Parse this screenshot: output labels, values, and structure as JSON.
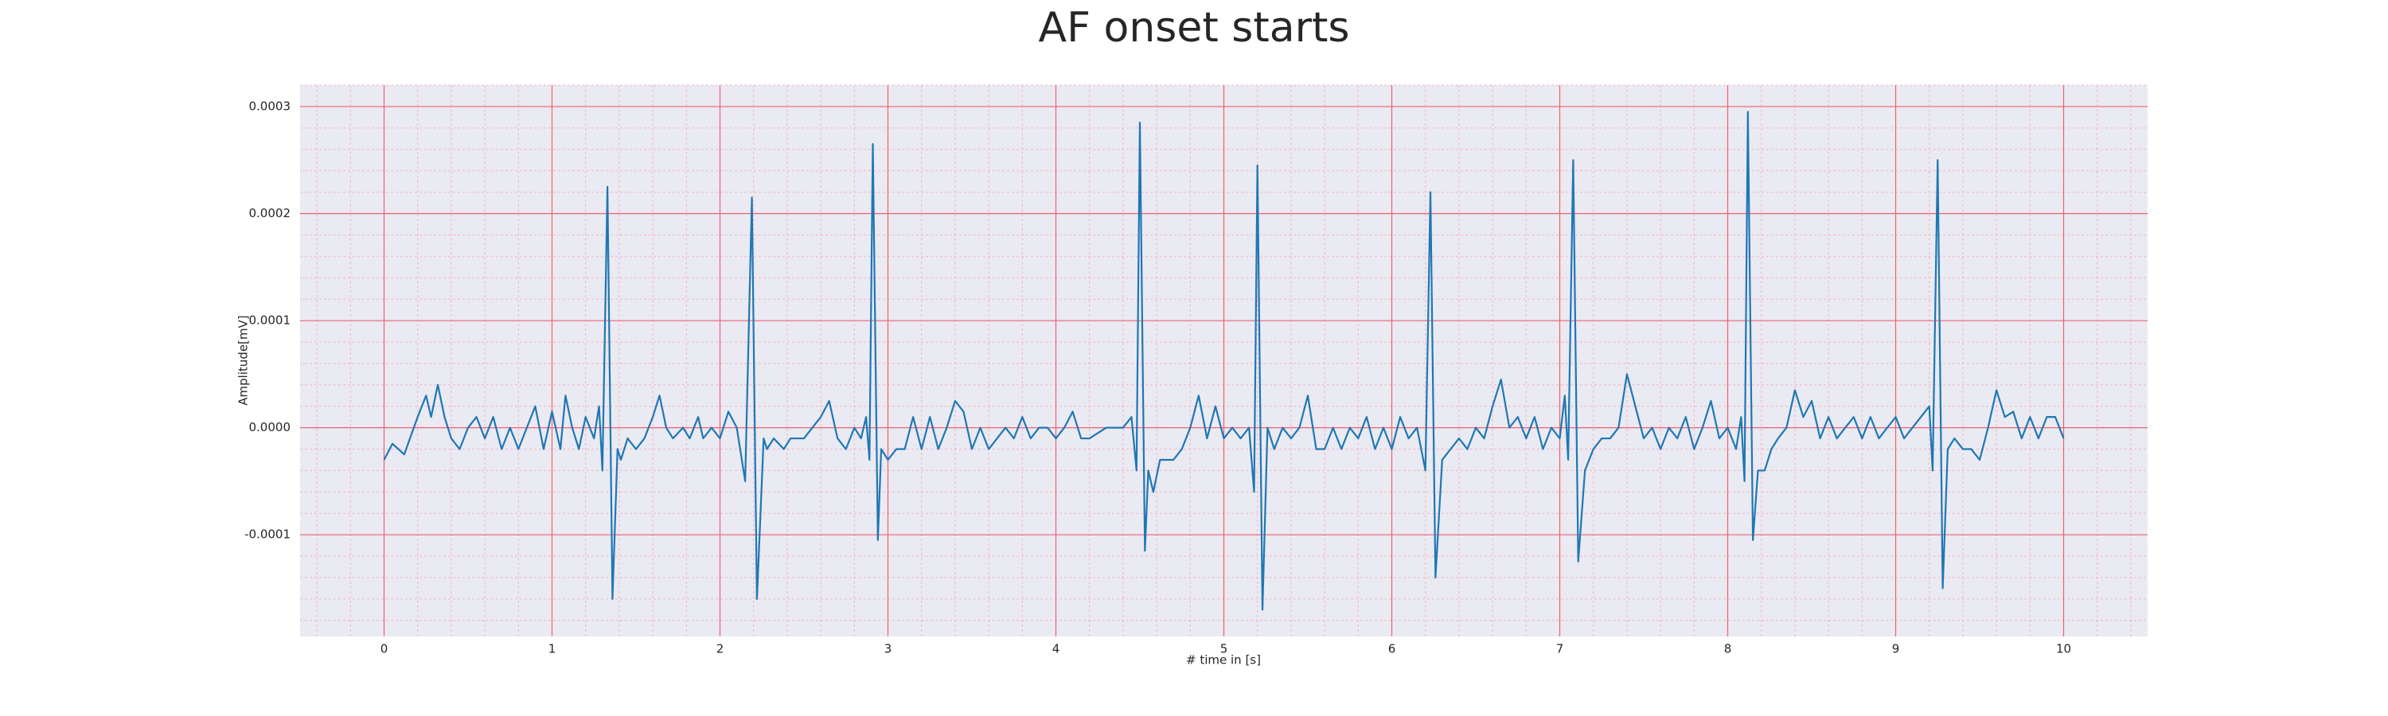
{
  "chart_data": {
    "type": "line",
    "title": "AF onset starts",
    "x_label": "# time in [s]",
    "y_label": "Amplitude[mV]",
    "color": "#1f77b4",
    "grid": true,
    "minor_grid": true,
    "x": [
      0,
      0.05,
      0.12,
      0.2,
      0.25,
      0.28,
      0.32,
      0.36,
      0.4,
      0.45,
      0.5,
      0.55,
      0.6,
      0.65,
      0.7,
      0.75,
      0.8,
      0.85,
      0.9,
      0.95,
      1.0,
      1.05,
      1.08,
      1.12,
      1.16,
      1.2,
      1.25,
      1.28,
      1.3,
      1.33,
      1.36,
      1.39,
      1.41,
      1.45,
      1.5,
      1.55,
      1.6,
      1.64,
      1.68,
      1.72,
      1.78,
      1.82,
      1.87,
      1.9,
      1.95,
      2.0,
      2.05,
      2.1,
      2.15,
      2.19,
      2.22,
      2.26,
      2.28,
      2.32,
      2.38,
      2.42,
      2.5,
      2.55,
      2.6,
      2.65,
      2.7,
      2.75,
      2.8,
      2.84,
      2.87,
      2.89,
      2.91,
      2.94,
      2.96,
      3.0,
      3.05,
      3.1,
      3.15,
      3.2,
      3.25,
      3.3,
      3.35,
      3.4,
      3.45,
      3.5,
      3.55,
      3.6,
      3.65,
      3.7,
      3.75,
      3.8,
      3.85,
      3.9,
      3.95,
      4.0,
      4.05,
      4.1,
      4.15,
      4.2,
      4.3,
      4.4,
      4.45,
      4.48,
      4.5,
      4.53,
      4.55,
      4.58,
      4.62,
      4.7,
      4.75,
      4.8,
      4.85,
      4.9,
      4.95,
      5.0,
      5.05,
      5.1,
      5.15,
      5.18,
      5.2,
      5.23,
      5.26,
      5.3,
      5.35,
      5.4,
      5.45,
      5.5,
      5.55,
      5.6,
      5.65,
      5.7,
      5.75,
      5.8,
      5.85,
      5.9,
      5.95,
      6.0,
      6.05,
      6.1,
      6.15,
      6.2,
      6.23,
      6.26,
      6.3,
      6.35,
      6.4,
      6.45,
      6.5,
      6.55,
      6.6,
      6.65,
      6.7,
      6.75,
      6.8,
      6.85,
      6.9,
      6.95,
      7.0,
      7.03,
      7.05,
      7.08,
      7.11,
      7.15,
      7.2,
      7.25,
      7.3,
      7.35,
      7.4,
      7.45,
      7.5,
      7.55,
      7.6,
      7.65,
      7.7,
      7.75,
      7.8,
      7.85,
      7.9,
      7.95,
      8.0,
      8.05,
      8.08,
      8.1,
      8.12,
      8.15,
      8.18,
      8.22,
      8.26,
      8.3,
      8.35,
      8.4,
      8.45,
      8.5,
      8.55,
      8.6,
      8.65,
      8.7,
      8.75,
      8.8,
      8.85,
      8.9,
      8.95,
      9.0,
      9.05,
      9.1,
      9.15,
      9.2,
      9.22,
      9.25,
      9.28,
      9.31,
      9.35,
      9.4,
      9.45,
      9.5,
      9.55,
      9.6,
      9.65,
      9.7,
      9.75,
      9.8,
      9.85,
      9.9,
      9.95,
      10.0
    ],
    "values": [
      -3e-05,
      -1.5e-05,
      -2.5e-05,
      1e-05,
      3e-05,
      1e-05,
      4e-05,
      1e-05,
      -1e-05,
      -2e-05,
      0,
      1e-05,
      -1e-05,
      1e-05,
      -2e-05,
      0,
      -2e-05,
      0,
      2e-05,
      -2e-05,
      1.5e-05,
      -2e-05,
      3e-05,
      0,
      -2e-05,
      1e-05,
      -1e-05,
      2e-05,
      -4e-05,
      0.000225,
      -0.00016,
      -2e-05,
      -3e-05,
      -1e-05,
      -2e-05,
      -1e-05,
      1e-05,
      3e-05,
      0,
      -1e-05,
      0,
      -1e-05,
      1e-05,
      -1e-05,
      0,
      -1e-05,
      1.5e-05,
      0,
      -5e-05,
      0.000215,
      -0.00016,
      -1e-05,
      -2e-05,
      -1e-05,
      -2e-05,
      -1e-05,
      -1e-05,
      0,
      1e-05,
      2.5e-05,
      -1e-05,
      -2e-05,
      0,
      -1e-05,
      1e-05,
      -3e-05,
      0.000265,
      -0.000105,
      -2e-05,
      -3e-05,
      -2e-05,
      -2e-05,
      1e-05,
      -2e-05,
      1e-05,
      -2e-05,
      0,
      2.5e-05,
      1.5e-05,
      -2e-05,
      0,
      -2e-05,
      -1e-05,
      0,
      -1e-05,
      1e-05,
      -1e-05,
      0,
      0,
      -1e-05,
      0,
      1.5e-05,
      -1e-05,
      -1e-05,
      0,
      0,
      1e-05,
      -4e-05,
      0.000285,
      -0.000115,
      -4e-05,
      -6e-05,
      -3e-05,
      -3e-05,
      -2e-05,
      0,
      3e-05,
      -1e-05,
      2e-05,
      -1e-05,
      0,
      -1e-05,
      0,
      -6e-05,
      0.000245,
      -0.00017,
      0,
      -2e-05,
      0,
      -1e-05,
      0,
      3e-05,
      -2e-05,
      -2e-05,
      0,
      -2e-05,
      0,
      -1e-05,
      1e-05,
      -2e-05,
      0,
      -2e-05,
      1e-05,
      -1e-05,
      0,
      -4e-05,
      0.00022,
      -0.00014,
      -3e-05,
      -2e-05,
      -1e-05,
      -2e-05,
      0,
      -1e-05,
      2e-05,
      4.5e-05,
      0,
      1e-05,
      -1e-05,
      1e-05,
      -2e-05,
      0,
      -1e-05,
      3e-05,
      -3e-05,
      0.00025,
      -0.000125,
      -4e-05,
      -2e-05,
      -1e-05,
      -1e-05,
      0,
      5e-05,
      2e-05,
      -1e-05,
      0,
      -2e-05,
      0,
      -1e-05,
      1e-05,
      -2e-05,
      0,
      2.5e-05,
      -1e-05,
      0,
      -2e-05,
      1e-05,
      -5e-05,
      0.000295,
      -0.000105,
      -4e-05,
      -4e-05,
      -2e-05,
      -1e-05,
      0,
      3.5e-05,
      1e-05,
      2.5e-05,
      -1e-05,
      1e-05,
      -1e-05,
      0,
      1e-05,
      -1e-05,
      1e-05,
      -1e-05,
      0,
      1e-05,
      -1e-05,
      0,
      1e-05,
      2e-05,
      -4e-05,
      0.00025,
      -0.00015,
      -2e-05,
      -1e-05,
      -2e-05,
      -2e-05,
      -3e-05,
      0,
      3.5e-05,
      1e-05,
      1.5e-05,
      -1e-05,
      1e-05,
      -1e-05,
      1e-05,
      1e-05,
      -1e-05
    ],
    "xlim": [
      -0.5,
      10.5
    ],
    "xticks": [
      0,
      1,
      2,
      3,
      4,
      5,
      6,
      7,
      8,
      9,
      10
    ],
    "ylim": [
      -0.000195,
      0.00032
    ],
    "yticks": [
      {
        "value": -0.0001,
        "label": "-0.0001"
      },
      {
        "value": 0,
        "label": "0.0000"
      },
      {
        "value": 0.0001,
        "label": "0.0001"
      },
      {
        "value": 0.0002,
        "label": "0.0002"
      },
      {
        "value": 0.0003,
        "label": "0.0003"
      }
    ]
  }
}
